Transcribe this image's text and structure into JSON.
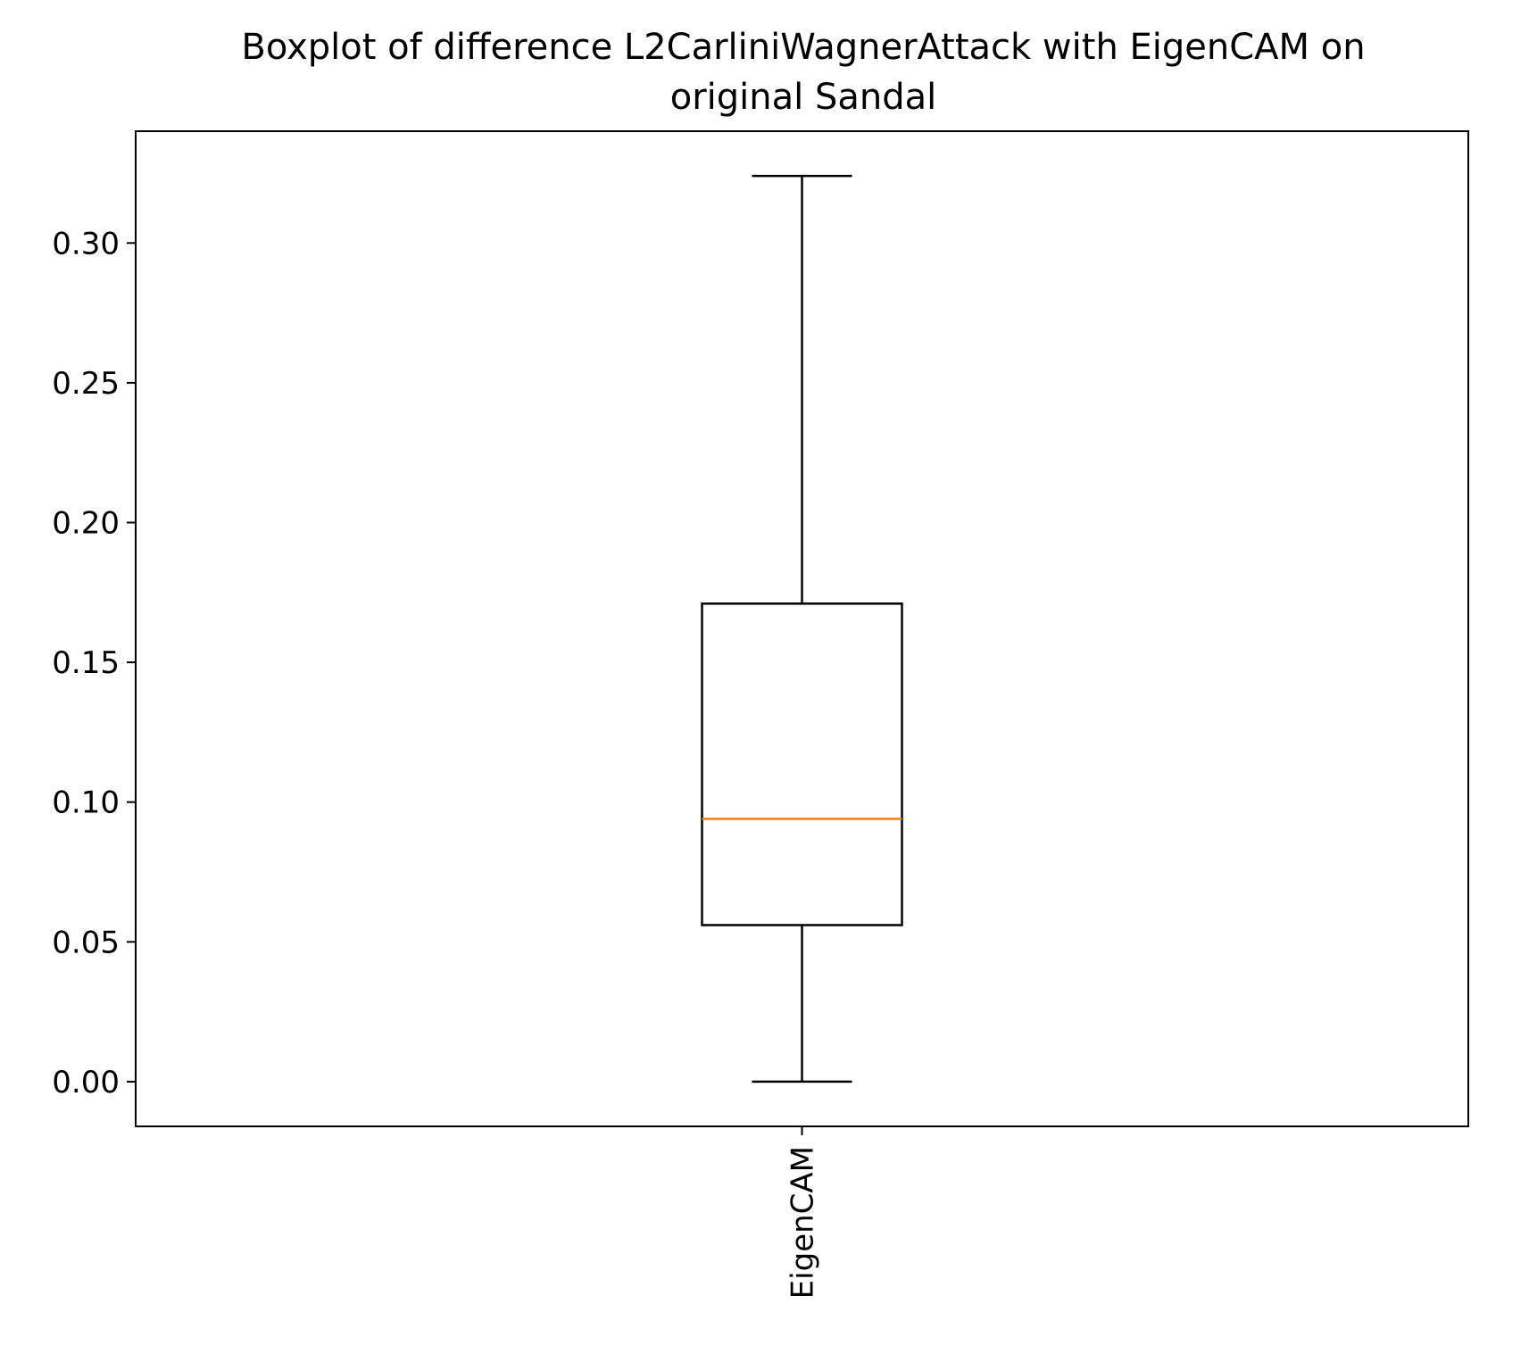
{
  "chart_data": {
    "type": "boxplot",
    "title_lines": [
      "Boxplot of difference L2CarliniWagnerAttack with EigenCAM on",
      "original Sandal"
    ],
    "xlabel": "",
    "ylabel": "",
    "categories": [
      "EigenCAM"
    ],
    "boxes": [
      {
        "category": "EigenCAM",
        "whisker_low": 0.0,
        "q1": 0.056,
        "median": 0.094,
        "q3": 0.171,
        "whisker_high": 0.324
      }
    ],
    "ylim": [
      -0.016,
      0.34
    ],
    "yticks": [
      0.0,
      0.05,
      0.1,
      0.15,
      0.2,
      0.25,
      0.3
    ],
    "ytick_labels": [
      "0.00",
      "0.05",
      "0.10",
      "0.15",
      "0.20",
      "0.25",
      "0.30"
    ],
    "xtick_rotation": "vertical",
    "grid": false,
    "colors": {
      "box": "#000000",
      "median": "#ff7f0e",
      "axes": "#000000",
      "background": "#ffffff"
    }
  }
}
